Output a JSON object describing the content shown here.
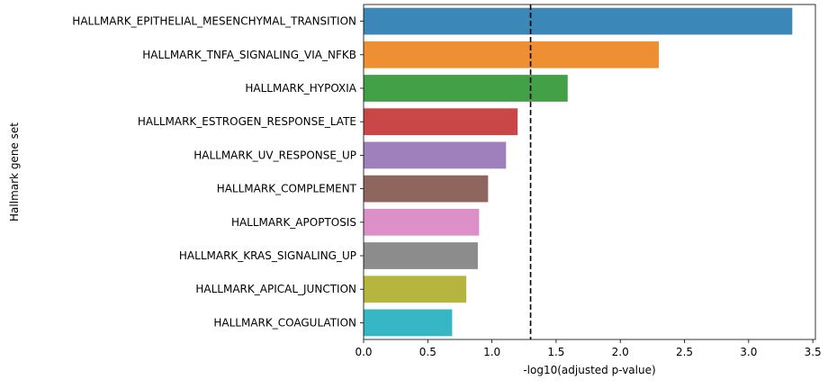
{
  "chart_data": {
    "type": "bar",
    "orientation": "horizontal",
    "title": "",
    "xlabel": "-log10(adjusted p-value)",
    "ylabel": "Hallmark gene set",
    "xlim": [
      0,
      3.52
    ],
    "xticks": [
      0.0,
      0.5,
      1.0,
      1.5,
      2.0,
      2.5,
      3.0,
      3.5
    ],
    "xtick_labels": [
      "0.0",
      "0.5",
      "1.0",
      "1.5",
      "2.0",
      "2.5",
      "3.0",
      "3.5"
    ],
    "grid": false,
    "legend": "none",
    "threshold_line": {
      "x": 1.301,
      "style": "dashed",
      "color": "#000000"
    },
    "categories": [
      "HALLMARK_EPITHELIAL_MESENCHYMAL_TRANSITION",
      "HALLMARK_TNFA_SIGNALING_VIA_NFKB",
      "HALLMARK_HYPOXIA",
      "HALLMARK_ESTROGEN_RESPONSE_LATE",
      "HALLMARK_UV_RESPONSE_UP",
      "HALLMARK_COMPLEMENT",
      "HALLMARK_APOPTOSIS",
      "HALLMARK_KRAS_SIGNALING_UP",
      "HALLMARK_APICAL_JUNCTION",
      "HALLMARK_COAGULATION"
    ],
    "values": [
      3.34,
      2.3,
      1.59,
      1.2,
      1.11,
      0.97,
      0.9,
      0.89,
      0.8,
      0.69
    ],
    "colors": [
      "#3a87b8",
      "#ef8f33",
      "#42a046",
      "#ca4748",
      "#9d80bc",
      "#8f665d",
      "#dd8fc8",
      "#8c8c8c",
      "#b5b53f",
      "#37b7c6"
    ]
  }
}
